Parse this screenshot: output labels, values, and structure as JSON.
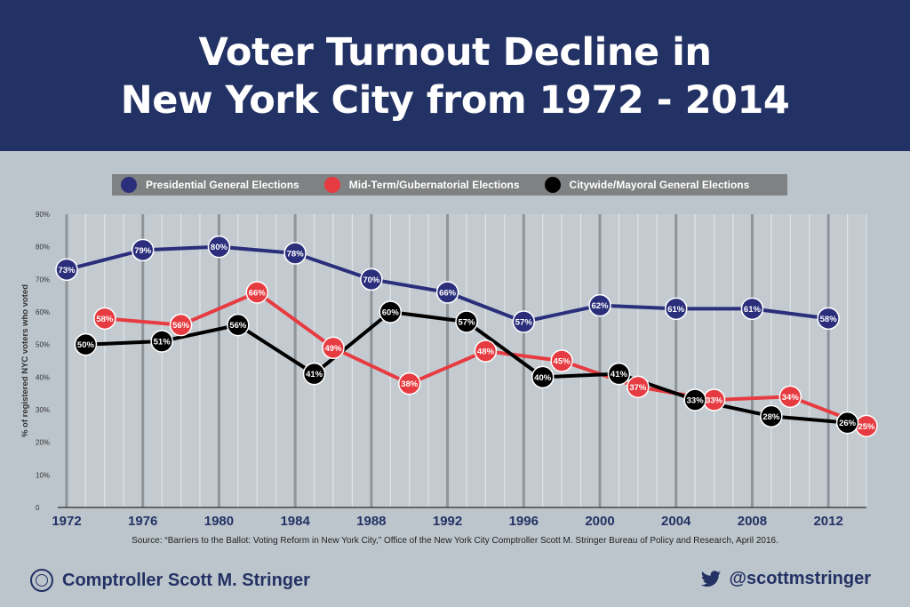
{
  "header": {
    "title_line1": "Voter Turnout Decline in",
    "title_line2": "New York City from 1972 - 2014"
  },
  "footer": {
    "comptroller": "Comptroller Scott M. Stringer",
    "twitter": "@scottmstringer"
  },
  "source": "Source: “Barriers to the Ballot: Voting Reform in New York City,” Office of the New York City Comptroller Scott M. Stringer Bureau of Policy and Research, April 2016.",
  "chart_data": {
    "type": "line",
    "title": "Voter Turnout Decline in New York City from 1972 - 2014",
    "ylabel": "% of registered NYC voters who voted",
    "xlabel": "",
    "ylim": [
      0,
      90
    ],
    "xlim": [
      1972,
      2014
    ],
    "y_ticks": [
      "0",
      "10%",
      "20%",
      "30%",
      "40%",
      "50%",
      "60%",
      "70%",
      "80%",
      "90%"
    ],
    "x_ticks": [
      1972,
      1976,
      1980,
      1984,
      1988,
      1992,
      1996,
      2000,
      2004,
      2008,
      2012
    ],
    "legend_position": "top",
    "series": [
      {
        "name": "Presidential General Elections",
        "color": "#2b2f7b",
        "x": [
          1972,
          1976,
          1980,
          1984,
          1988,
          1992,
          1996,
          2000,
          2004,
          2008,
          2012
        ],
        "values": [
          73,
          79,
          80,
          78,
          70,
          66,
          57,
          62,
          61,
          61,
          58
        ]
      },
      {
        "name": "Mid-Term/Gubernatorial Elections",
        "color": "#e63b40",
        "x": [
          1974,
          1978,
          1982,
          1986,
          1990,
          1994,
          1998,
          2002,
          2006,
          2010,
          2014
        ],
        "values": [
          58,
          56,
          66,
          49,
          38,
          48,
          45,
          37,
          33,
          34,
          25
        ]
      },
      {
        "name": "Citywide/Mayoral General Elections",
        "color": "#000000",
        "x": [
          1973,
          1977,
          1981,
          1985,
          1989,
          1993,
          1997,
          2001,
          2005,
          2009,
          2013
        ],
        "values": [
          50,
          51,
          56,
          41,
          60,
          57,
          40,
          41,
          33,
          28,
          26
        ]
      }
    ]
  }
}
